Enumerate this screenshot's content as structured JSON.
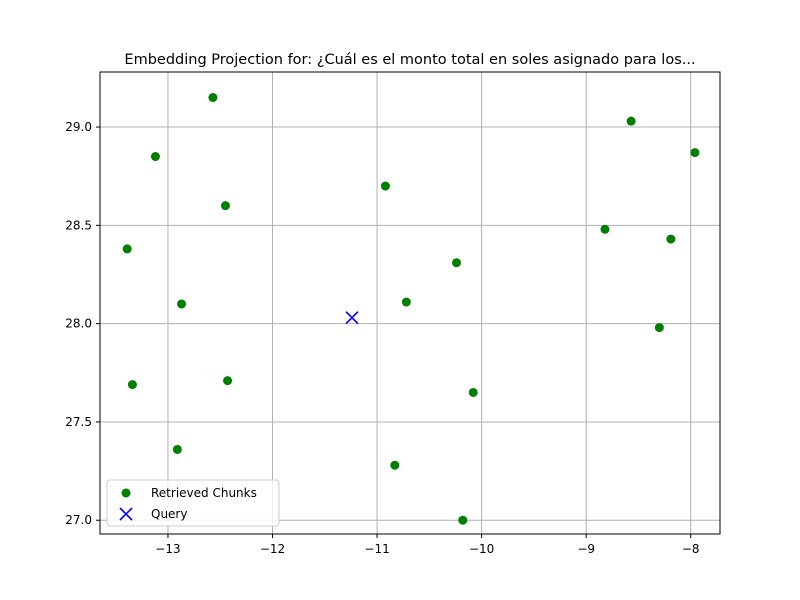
{
  "chart_data": {
    "type": "scatter",
    "title": "Embedding Projection for: ¿Cuál es el monto total en soles asignado para los...",
    "xlabel": "",
    "ylabel": "",
    "xlim": [
      -13.65,
      -7.72
    ],
    "ylim": [
      26.93,
      29.28
    ],
    "xticks": [
      -13,
      -12,
      -11,
      -10,
      -9,
      -8
    ],
    "xtick_labels": [
      "−13",
      "−12",
      "−11",
      "−10",
      "−9",
      "−8"
    ],
    "yticks": [
      27.0,
      27.5,
      28.0,
      28.5,
      29.0
    ],
    "ytick_labels": [
      "27.0",
      "27.5",
      "28.0",
      "28.5",
      "29.0"
    ],
    "grid": true,
    "legend": {
      "placement": "lower-left"
    },
    "series": [
      {
        "name": "Retrieved Chunks",
        "marker": "circle",
        "color": "#008000",
        "points": [
          {
            "x": -12.57,
            "y": 29.15
          },
          {
            "x": -13.12,
            "y": 28.85
          },
          {
            "x": -12.45,
            "y": 28.6
          },
          {
            "x": -13.39,
            "y": 28.38
          },
          {
            "x": -12.87,
            "y": 28.1
          },
          {
            "x": -13.34,
            "y": 27.69
          },
          {
            "x": -12.43,
            "y": 27.71
          },
          {
            "x": -12.91,
            "y": 27.36
          },
          {
            "x": -10.92,
            "y": 28.7
          },
          {
            "x": -10.24,
            "y": 28.31
          },
          {
            "x": -10.72,
            "y": 28.11
          },
          {
            "x": -10.08,
            "y": 27.65
          },
          {
            "x": -10.83,
            "y": 27.28
          },
          {
            "x": -10.18,
            "y": 27.0
          },
          {
            "x": -8.57,
            "y": 29.03
          },
          {
            "x": -7.96,
            "y": 28.87
          },
          {
            "x": -8.82,
            "y": 28.48
          },
          {
            "x": -8.19,
            "y": 28.43
          },
          {
            "x": -8.3,
            "y": 27.98
          }
        ]
      },
      {
        "name": "Query",
        "marker": "x",
        "color": "#0000ff",
        "points": [
          {
            "x": -11.24,
            "y": 28.03
          }
        ]
      }
    ]
  }
}
